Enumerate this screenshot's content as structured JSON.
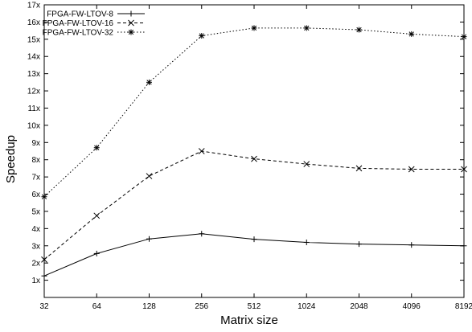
{
  "chart_data": {
    "type": "line",
    "title": "",
    "xlabel": "Matrix size",
    "ylabel": "Speedup",
    "x_categories": [
      "32",
      "64",
      "128",
      "256",
      "512",
      "1024",
      "2048",
      "4096",
      "8192"
    ],
    "y_ticks": [
      "1x",
      "2x",
      "3x",
      "4x",
      "5x",
      "6x",
      "7x",
      "8x",
      "9x",
      "10x",
      "11x",
      "12x",
      "13x",
      "14x",
      "15x",
      "16x",
      "17x"
    ],
    "ylim": [
      0,
      17
    ],
    "grid": false,
    "legend_position": "top-left",
    "series": [
      {
        "name": "FPGA-FW-LTOV-8",
        "marker": "plus",
        "dash": "solid",
        "values": [
          1.25,
          2.55,
          3.4,
          3.7,
          3.38,
          3.2,
          3.1,
          3.05,
          3.0
        ]
      },
      {
        "name": "FPGA-FW-LTOV-16",
        "marker": "cross",
        "dash": "dashed",
        "values": [
          2.2,
          4.75,
          7.05,
          8.5,
          8.05,
          7.75,
          7.5,
          7.45,
          7.45
        ]
      },
      {
        "name": "FPGA-FW-LTOV-32",
        "marker": "star",
        "dash": "dotted",
        "values": [
          5.85,
          8.7,
          12.5,
          15.2,
          15.65,
          15.65,
          15.55,
          15.3,
          15.15
        ]
      }
    ]
  }
}
